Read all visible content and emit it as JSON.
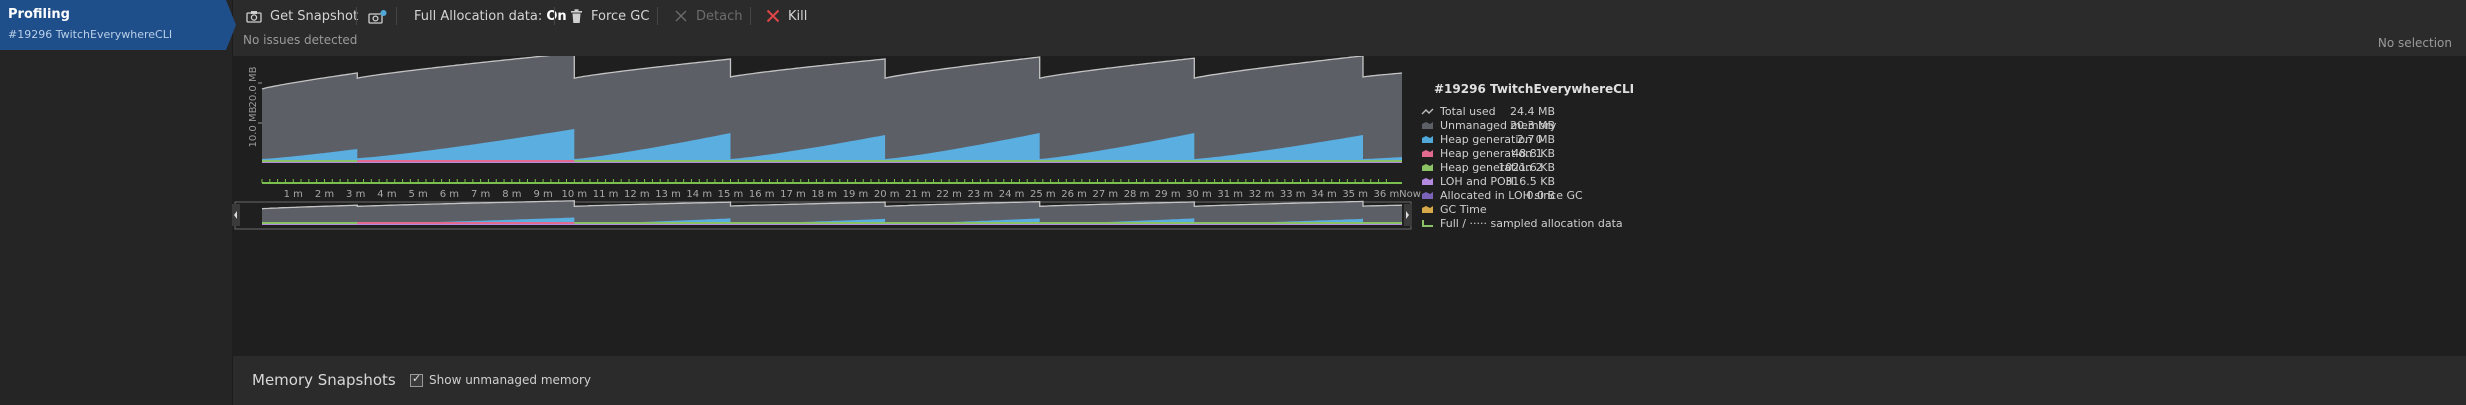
{
  "session": {
    "title": "Profiling",
    "process": "#19296 TwitchEverywhereCLI"
  },
  "toolbar": {
    "snapshot": "Get Snapshot",
    "allocation_prefix": "Full Allocation data: ",
    "allocation_value": "On",
    "force_gc": "Force GC",
    "detach": "Detach",
    "kill": "Kill"
  },
  "status": {
    "issues": "No issues detected",
    "selection": "No selection"
  },
  "legend": {
    "title": "#19296 TwitchEverywhereCLI",
    "items": [
      {
        "label": "Total used",
        "value": "24.4 MB",
        "color": "#bdbdbd",
        "icon": "line-icon"
      },
      {
        "label": "Unmanaged memory",
        "value": "20.3 MB",
        "color": "#5d5f66",
        "icon": "area-icon"
      },
      {
        "label": "Heap generation 0",
        "value": "2.7 MB",
        "color": "#4fa8d8",
        "icon": "area-icon"
      },
      {
        "label": "Heap generation 1",
        "value": "48.8 KB",
        "color": "#e26a8f",
        "icon": "area-icon"
      },
      {
        "label": "Heap generation 2",
        "value": "1021.6 KB",
        "color": "#8cc266",
        "icon": "area-icon"
      },
      {
        "label": "LOH and POH",
        "value": "316.5 KB",
        "color": "#b48ae0",
        "icon": "area-icon"
      },
      {
        "label": "Allocated in LOH since GC",
        "value": "0.0 B",
        "color": "#7a63b8",
        "icon": "area-icon"
      },
      {
        "label": "GC Time",
        "value": "",
        "color": "#d6a84a",
        "icon": "area-icon"
      },
      {
        "label": "Full / ····· sampled allocation data",
        "value": "",
        "color": "#8cc266",
        "icon": "step-icon"
      }
    ]
  },
  "chart_data": {
    "type": "area",
    "ylabel": "MB",
    "yticks": [
      "20.0 MB",
      "10.0 MB"
    ],
    "ylim": [
      0,
      25
    ],
    "xlim": [
      0,
      36.5
    ],
    "xticks": [
      "1 m",
      "2 m",
      "3 m",
      "4 m",
      "5 m",
      "6 m",
      "7 m",
      "8 m",
      "9 m",
      "10 m",
      "11 m",
      "12 m",
      "13 m",
      "14 m",
      "15 m",
      "16 m",
      "17 m",
      "18 m",
      "19 m",
      "20 m",
      "21 m",
      "22 m",
      "23 m",
      "24 m",
      "25 m",
      "26 m",
      "27 m",
      "28 m",
      "29 m",
      "30 m",
      "31 m",
      "32 m",
      "33 m",
      "34 m",
      "35 m",
      "36 m",
      "Now"
    ],
    "gc_cycles": [
      {
        "start": 0.0,
        "end": 3.05,
        "total": [
          18.5,
          22.5
        ],
        "heap": [
          1.0,
          3.5
        ],
        "pink": false
      },
      {
        "start": 3.05,
        "end": 10.0,
        "total": [
          21.2,
          27.5
        ],
        "heap": [
          1.2,
          8.5
        ],
        "pink": true
      },
      {
        "start": 10.0,
        "end": 15.0,
        "total": [
          21.2,
          26.0
        ],
        "heap": [
          1.0,
          7.5
        ],
        "pink": false
      },
      {
        "start": 15.0,
        "end": 19.95,
        "total": [
          21.5,
          26.0
        ],
        "heap": [
          1.0,
          7.0
        ],
        "pink": false
      },
      {
        "start": 19.95,
        "end": 24.9,
        "total": [
          21.2,
          26.5
        ],
        "heap": [
          1.0,
          7.5
        ],
        "pink": false
      },
      {
        "start": 24.9,
        "end": 29.85,
        "total": [
          21.2,
          26.2
        ],
        "heap": [
          1.0,
          7.5
        ],
        "pink": false
      },
      {
        "start": 29.85,
        "end": 35.25,
        "total": [
          21.2,
          26.8
        ],
        "heap": [
          1.0,
          7.0
        ],
        "pink": false
      },
      {
        "start": 35.25,
        "end": 36.5,
        "total": [
          21.5,
          22.5
        ],
        "heap": [
          1.0,
          1.5
        ],
        "pink": false
      }
    ],
    "grid": false,
    "legend_position": "right"
  },
  "bottom": {
    "snapshots_title": "Memory Snapshots",
    "show_unmanaged": "Show unmanaged memory"
  }
}
